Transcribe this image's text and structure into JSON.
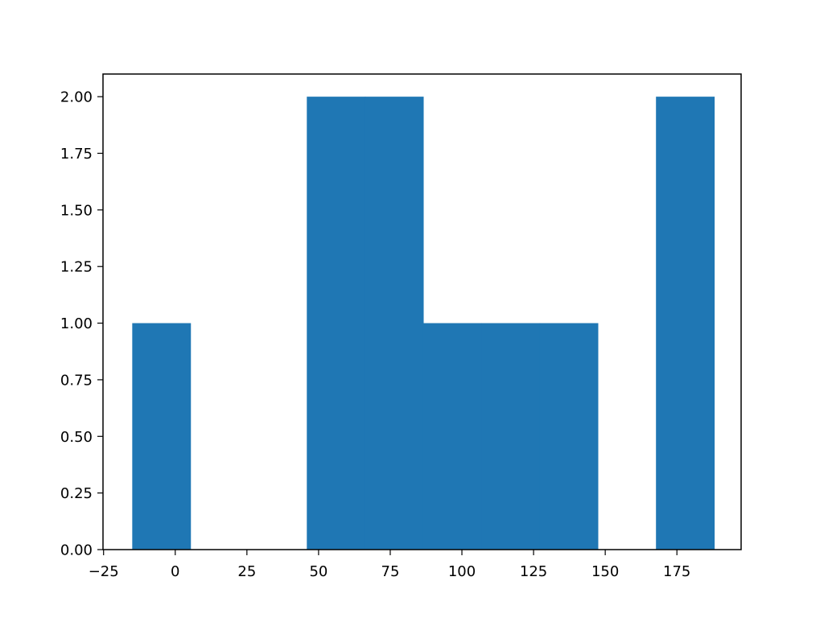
{
  "chart_data": {
    "type": "bar",
    "title": "",
    "xlabel": "",
    "ylabel": "",
    "xlim": [
      -25.2,
      197.4
    ],
    "ylim": [
      0,
      2.1
    ],
    "grid": false,
    "bar_color": "#1f77b4",
    "bins": [
      {
        "x0": -15.0,
        "x1": 5.3,
        "count": 1
      },
      {
        "x0": 5.3,
        "x1": 25.6,
        "count": 0
      },
      {
        "x0": 25.6,
        "x1": 45.9,
        "count": 0
      },
      {
        "x0": 45.9,
        "x1": 66.2,
        "count": 2
      },
      {
        "x0": 66.2,
        "x1": 86.5,
        "count": 2
      },
      {
        "x0": 86.5,
        "x1": 106.8,
        "count": 1
      },
      {
        "x0": 106.8,
        "x1": 127.1,
        "count": 1
      },
      {
        "x0": 127.1,
        "x1": 147.4,
        "count": 1
      },
      {
        "x0": 147.4,
        "x1": 167.7,
        "count": 0
      },
      {
        "x0": 167.7,
        "x1": 188.0,
        "count": 2
      }
    ],
    "x_ticks": [
      -25,
      0,
      25,
      50,
      75,
      100,
      125,
      150,
      175
    ],
    "x_tick_labels": [
      "−25",
      "0",
      "25",
      "50",
      "75",
      "100",
      "125",
      "150",
      "175"
    ],
    "y_ticks": [
      0,
      0.25,
      0.5,
      0.75,
      1.0,
      1.25,
      1.5,
      1.75,
      2.0
    ],
    "y_tick_labels": [
      "0.00",
      "0.25",
      "0.50",
      "0.75",
      "1.00",
      "1.25",
      "1.50",
      "1.75",
      "2.00"
    ]
  }
}
